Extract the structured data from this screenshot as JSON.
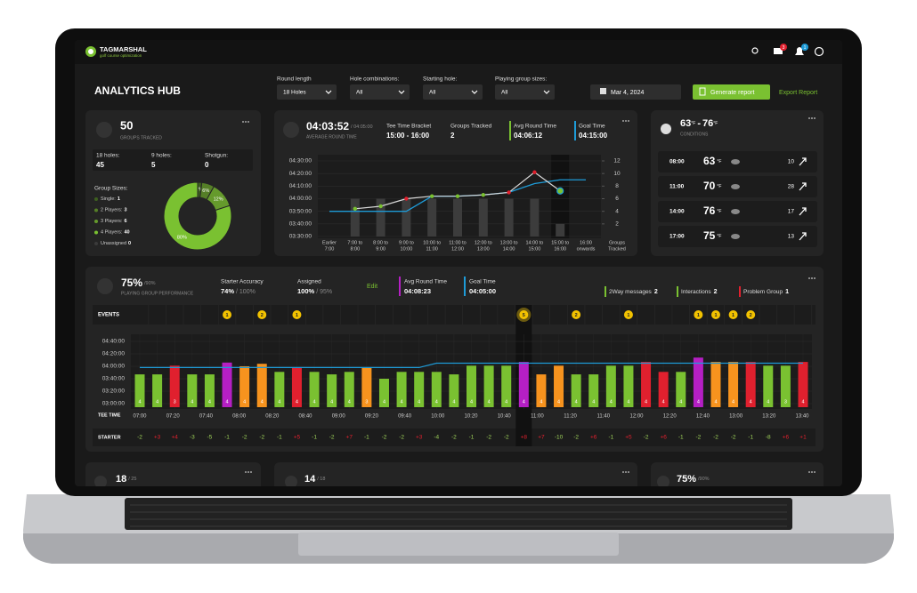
{
  "header": {
    "brand": "TAGMARSHAL",
    "tagline": "golf course optimization",
    "mail_badge": "3",
    "bell_badge": "1"
  },
  "page_title": "ANALYTICS HUB",
  "filters": [
    {
      "label": "Round length",
      "value": "18 Holes"
    },
    {
      "label": "Hole combinations:",
      "value": "All"
    },
    {
      "label": "Starting hole:",
      "value": "All"
    },
    {
      "label": "Playing group sizes:",
      "value": "All"
    }
  ],
  "date": "Mar 4, 2024",
  "generate_button": "Generate report",
  "export_link": "Export Report",
  "groups_card": {
    "value": "50",
    "caption": "GROUPS TRACKED",
    "stats": [
      {
        "label": "18 holes:",
        "value": "45"
      },
      {
        "label": "9 holes:",
        "value": "5"
      },
      {
        "label": "Shotgun:",
        "value": "0"
      }
    ],
    "sizes_title": "Group Sizes:",
    "sizes": [
      {
        "label": "Single:",
        "value": "1",
        "color": "#3d5f1f"
      },
      {
        "label": "2 Players:",
        "value": "3",
        "color": "#557f27"
      },
      {
        "label": "3 Players:",
        "value": "6",
        "color": "#659a2c"
      },
      {
        "label": "4 Players:",
        "value": "40",
        "color": "#7ac131"
      },
      {
        "label": "Unassigned",
        "value": "0",
        "color": "#3a3a3a"
      }
    ],
    "donut": {
      "type": "pie",
      "values": [
        2,
        6,
        12,
        80
      ],
      "value_labels": [
        "2%",
        "6%",
        "12%",
        "80%"
      ],
      "colors": [
        "#3d5f1f",
        "#557f27",
        "#659a2c",
        "#7ac131"
      ]
    }
  },
  "round_card": {
    "value": "04:03:52",
    "goal": "/ 04:05:00",
    "caption": "AVERAGE ROUND TIME",
    "boxes": [
      {
        "label": "Tee Time Bracket",
        "value": "15:00 - 16:00"
      },
      {
        "label": "Groups Tracked",
        "value": "2"
      },
      {
        "label": "Avg Round Time",
        "value": "04:06:12",
        "color": "#7ac131"
      },
      {
        "label": "Goal Time",
        "value": "04:15:00",
        "color": "#1e9bd7"
      }
    ],
    "chart": {
      "type": "bar",
      "categories": [
        [
          "Earlier",
          "7:00"
        ],
        [
          "7:00 to",
          "8:00"
        ],
        [
          "8:00 to",
          "9:00"
        ],
        [
          "9:00 to",
          "10:00"
        ],
        [
          "10:00 to",
          "11:00"
        ],
        [
          "11:00 to",
          "12:00"
        ],
        [
          "12:00 to",
          "13:00"
        ],
        [
          "13:00 to",
          "14:00"
        ],
        [
          "14:00 to",
          "15:00"
        ],
        [
          "15:00 to",
          "16:00"
        ],
        [
          "16:00",
          "onwards"
        ]
      ],
      "y2_label": [
        "Groups",
        "Tracked"
      ],
      "ylim": [
        12600,
        16200
      ],
      "yticks": [
        {
          "value": 16200,
          "label": "04:30:00"
        },
        {
          "value": 15600,
          "label": "04:20:00"
        },
        {
          "value": 15000,
          "label": "04:10:00"
        },
        {
          "value": 14400,
          "label": "04:00:00"
        },
        {
          "value": 13800,
          "label": "03:50:00"
        },
        {
          "value": 13200,
          "label": "03:40:00"
        },
        {
          "value": 12600,
          "label": "03:30:00"
        }
      ],
      "y2lim": [
        0,
        12
      ],
      "y2ticks": [
        12,
        10,
        8,
        6,
        4,
        2
      ],
      "groups": [
        null,
        6,
        6,
        6,
        6,
        6,
        6,
        6,
        6,
        2,
        null
      ],
      "groups_color": "#3c3c3c",
      "round_time": [
        null,
        13920,
        14040,
        14400,
        14520,
        14520,
        14580,
        14700,
        15660,
        14772,
        null
      ],
      "round_time_color": "#d8d8d8",
      "point_colors": [
        null,
        "#7ac131",
        "#7ac131",
        "#e0202e",
        "#7ac131",
        "#7ac131",
        "#7ac131",
        "#e0202e",
        "#e0202e",
        "#7ac131",
        null
      ],
      "goal_line": [
        13800,
        13800,
        13800,
        13800,
        14520,
        14520,
        14580,
        14700,
        15120,
        15300,
        15300
      ],
      "goal_color": "#1e9bd7"
    }
  },
  "conditions": {
    "low": "63",
    "high": "76",
    "unit": "°F",
    "separator": "-",
    "caption": "CONDITIONS",
    "hours": [
      {
        "time": "08:00",
        "temp": "63",
        "wind": "10"
      },
      {
        "time": "11:00",
        "temp": "70",
        "wind": "28"
      },
      {
        "time": "14:00",
        "temp": "76",
        "wind": "17"
      },
      {
        "time": "17:00",
        "temp": "75",
        "wind": "13"
      }
    ]
  },
  "performance": {
    "value": "75%",
    "target": "/90%",
    "caption": "PLAYING GROUP PERFORMANCE",
    "starter_accuracy": {
      "label": "Starter Accuracy",
      "value": "74%",
      "target": "/ 100%"
    },
    "assigned": {
      "label": "Assigned",
      "value": "100%",
      "target": "/ 95%"
    },
    "edit": "Edit",
    "avg_round": {
      "label": "Avg Round Time",
      "value": "04:08:23",
      "color": "#b51fc4"
    },
    "goal": {
      "label": "Goal Time",
      "value": "04:05:00",
      "color": "#1e9bd7"
    },
    "legend": [
      {
        "label": "2Way messages",
        "value": "2",
        "color": "#7ac131"
      },
      {
        "label": "Interactions",
        "value": "2",
        "color": "#7ac131"
      },
      {
        "label": "Problem Group",
        "value": "1",
        "color": "#e0202e"
      }
    ],
    "events_label": "EVENTS",
    "tee_label": "TEE TIME",
    "starter_label": "STARTER",
    "chart": {
      "type": "bar",
      "ylim": [
        10800,
        16800
      ],
      "yticks": [
        {
          "value": 16800,
          "label": "04:40:00"
        },
        {
          "value": 15600,
          "label": "04:20:00"
        },
        {
          "value": 14400,
          "label": "04:00:00"
        },
        {
          "value": 13200,
          "label": "03:40:00"
        },
        {
          "value": 12000,
          "label": "03:20:00"
        },
        {
          "value": 10800,
          "label": "03:00:00"
        }
      ],
      "tee_times": [
        "07:00",
        "07:20",
        "07:40",
        "08:00",
        "08:20",
        "08:40",
        "09:00",
        "09:20",
        "09:40",
        "10:00",
        "10:20",
        "10:40",
        "11:00",
        "11:20",
        "11:40",
        "12:00",
        "12:20",
        "12:40",
        "13:00",
        "13:20",
        "13:40"
      ],
      "values": [
        13620,
        13620,
        14460,
        13620,
        13620,
        14760,
        14400,
        14640,
        13860,
        14280,
        13860,
        13620,
        13860,
        14280,
        13200,
        13860,
        13860,
        13860,
        13620,
        14460,
        14460,
        14460,
        14820,
        13620,
        14460,
        13620,
        13620,
        14460,
        14460,
        14820,
        13860,
        13860,
        15240,
        14820,
        14820,
        14820,
        14460,
        14460,
        14820
      ],
      "colors": [
        "#7ac131",
        "#7ac131",
        "#e0202e",
        "#7ac131",
        "#7ac131",
        "#b51fc4",
        "#f7931e",
        "#f7931e",
        "#7ac131",
        "#e0202e",
        "#7ac131",
        "#7ac131",
        "#7ac131",
        "#f7931e",
        "#7ac131",
        "#7ac131",
        "#7ac131",
        "#7ac131",
        "#7ac131",
        "#7ac131",
        "#7ac131",
        "#7ac131",
        "#b51fc4",
        "#f7931e",
        "#f7931e",
        "#7ac131",
        "#7ac131",
        "#7ac131",
        "#7ac131",
        "#e0202e",
        "#e0202e",
        "#7ac131",
        "#b51fc4",
        "#f7931e",
        "#f7931e",
        "#e0202e",
        "#7ac131",
        "#7ac131",
        "#e0202e"
      ],
      "players": [
        "4",
        "4",
        "3",
        "4",
        "4",
        "4",
        "4",
        "4",
        "4",
        "4",
        "4",
        "4",
        "4",
        "3",
        "4",
        "4",
        "4",
        "4",
        "4",
        "4",
        "4",
        "4",
        "4",
        "4",
        "4",
        "4",
        "4",
        "4",
        "4",
        "4",
        "4",
        "4",
        "4",
        "4",
        "4",
        "4",
        "4",
        "3",
        "4"
      ],
      "events": [
        null,
        null,
        null,
        null,
        null,
        1,
        null,
        2,
        null,
        1,
        null,
        null,
        null,
        null,
        null,
        null,
        null,
        null,
        null,
        null,
        null,
        null,
        5,
        null,
        null,
        2,
        null,
        null,
        1,
        null,
        null,
        null,
        1,
        1,
        1,
        2,
        null,
        null,
        null
      ],
      "starter": [
        "-2",
        "+3",
        "+4",
        "-3",
        "-5",
        "-1",
        "-2",
        "-2",
        "-1",
        "+5",
        "-1",
        "-2",
        "+7",
        "-1",
        "-2",
        "-2",
        "+3",
        "-4",
        "-2",
        "-1",
        "-2",
        "-2",
        "+8",
        "+7",
        "-10",
        "-2",
        "+6",
        "-1",
        "+5",
        "-2",
        "+6",
        "-1",
        "-2",
        "-2",
        "-2",
        "-1",
        "-8",
        "+6",
        "+1"
      ],
      "goal_line": [
        14280,
        14280,
        14280,
        14280,
        14280,
        14280,
        14280,
        14280,
        14280,
        14280,
        14280,
        14280,
        14280,
        14280,
        14280,
        14280,
        14280,
        14700,
        14700,
        14700,
        14700,
        14700,
        14700,
        14700,
        14700,
        14700,
        14700,
        14700,
        14700,
        14700,
        14700,
        14700,
        14700,
        14700,
        14700,
        14700,
        14700,
        14700,
        14700
      ],
      "goal_color": "#1e9bd7"
    }
  },
  "bottom_cards": [
    {
      "value": "18",
      "target": "/ 25"
    },
    {
      "value": "14",
      "target": "/ 18"
    },
    {
      "value": "75%",
      "target": "/90%"
    }
  ]
}
